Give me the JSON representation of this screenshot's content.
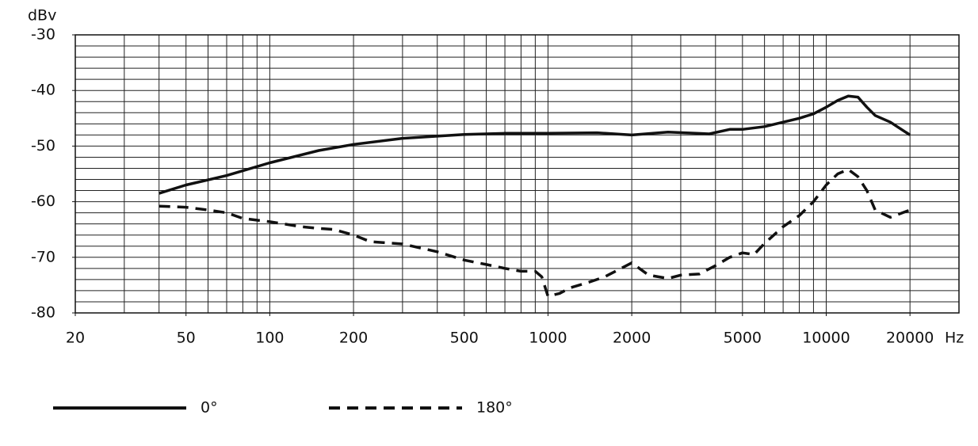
{
  "chart_data": {
    "type": "line",
    "x_label": "Hz",
    "y_label": "dBv",
    "xscale": "log",
    "xlim": [
      20,
      30000
    ],
    "ylim": [
      -80,
      -30
    ],
    "xticks": [
      20,
      50,
      100,
      200,
      500,
      1000,
      2000,
      5000,
      10000,
      20000
    ],
    "yticks": [
      -30,
      -40,
      -50,
      -60,
      -70,
      -80
    ],
    "x_grid": [
      20,
      30,
      40,
      50,
      60,
      70,
      80,
      90,
      100,
      200,
      300,
      400,
      500,
      600,
      700,
      800,
      900,
      1000,
      2000,
      3000,
      4000,
      5000,
      6000,
      7000,
      8000,
      9000,
      10000,
      20000,
      30000
    ],
    "y_grid": [
      -30,
      -32,
      -34,
      -36,
      -38,
      -40,
      -42,
      -44,
      -46,
      -48,
      -50,
      -52,
      -54,
      -56,
      -58,
      -60,
      -62,
      -64,
      -66,
      -68,
      -70,
      -72,
      -74,
      -76,
      -78,
      -80
    ],
    "grid": true,
    "series": [
      {
        "name": "0°",
        "color": "#111111",
        "line_style": "solid",
        "x": [
          40,
          50,
          70,
          100,
          150,
          200,
          300,
          500,
          700,
          1000,
          1500,
          2000,
          2700,
          3800,
          4500,
          5000,
          6000,
          7000,
          8000,
          9000,
          10000,
          11000,
          12000,
          13000,
          14000,
          15000,
          17000,
          20000
        ],
        "values": [
          -58.5,
          -57,
          -55.3,
          -53,
          -50.8,
          -49.7,
          -48.6,
          -47.9,
          -47.7,
          -47.7,
          -47.6,
          -48,
          -47.5,
          -47.8,
          -47,
          -47,
          -46.5,
          -45.7,
          -45,
          -44.2,
          -43,
          -41.8,
          -41,
          -41.2,
          -43,
          -44.5,
          -45.7,
          -48
        ]
      },
      {
        "name": "180°",
        "color": "#111111",
        "line_style": "dashed",
        "x": [
          40,
          50,
          60,
          70,
          80,
          100,
          130,
          150,
          170,
          200,
          230,
          300,
          400,
          500,
          600,
          700,
          800,
          900,
          950,
          1000,
          1100,
          1200,
          1400,
          1600,
          2000,
          2300,
          2700,
          3000,
          3500,
          4000,
          4500,
          5000,
          5500,
          6000,
          7000,
          8000,
          9000,
          10000,
          11000,
          12000,
          13000,
          14000,
          15000,
          17000,
          20000
        ],
        "values": [
          -60.8,
          -61,
          -61.5,
          -62,
          -63,
          -63.6,
          -64.5,
          -64.8,
          -65,
          -66,
          -67.2,
          -67.6,
          -69,
          -70.5,
          -71.3,
          -72,
          -72.5,
          -72.5,
          -73.5,
          -77,
          -76.5,
          -75.5,
          -74.5,
          -73.5,
          -71,
          -73.2,
          -73.8,
          -73.2,
          -73,
          -71.5,
          -70,
          -69.2,
          -69.5,
          -67.5,
          -64.5,
          -62.5,
          -60,
          -57,
          -55,
          -54.2,
          -55.5,
          -58,
          -61.5,
          -62.8,
          -61.5
        ]
      }
    ]
  }
}
